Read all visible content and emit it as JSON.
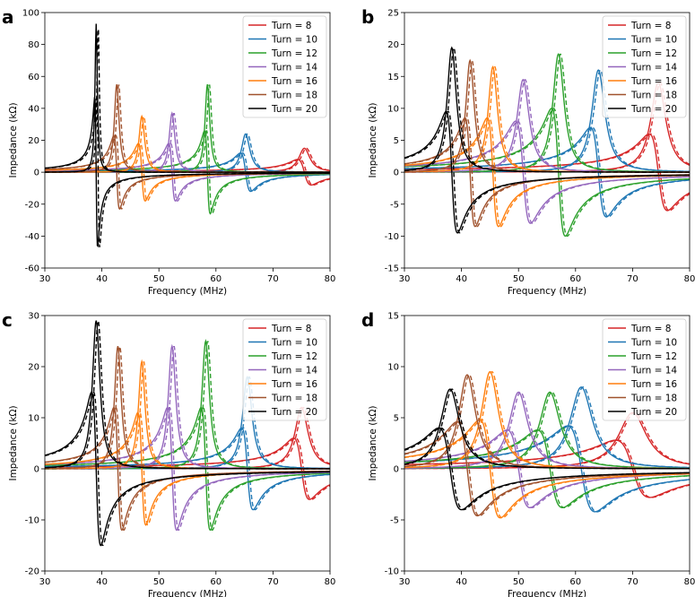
{
  "chart_data": [
    {
      "panel": "a",
      "type": "line",
      "xlabel": "Frequency (MHz)",
      "ylabel": "Impedance (kΩ)",
      "xlim": [
        30,
        80
      ],
      "ylim": [
        -60,
        100
      ],
      "xticks": [
        30,
        40,
        50,
        60,
        70,
        80
      ],
      "yticks": [
        -60,
        -40,
        -20,
        0,
        20,
        40,
        60,
        80,
        100
      ],
      "legend_position": "top-right",
      "series": [
        {
          "name": "Turn = 8",
          "color": "#d62728",
          "f0": 75.5,
          "width": 1.2,
          "peak_real": 15,
          "min_imag": -8
        },
        {
          "name": "Turn = 10",
          "color": "#1f77b4",
          "f0": 65.2,
          "width": 0.9,
          "peak_real": 24,
          "min_imag": -12
        },
        {
          "name": "Turn = 12",
          "color": "#2ca02c",
          "f0": 58.5,
          "width": 0.5,
          "peak_real": 55,
          "min_imag": -26
        },
        {
          "name": "Turn = 14",
          "color": "#9467bd",
          "f0": 52.3,
          "width": 0.6,
          "peak_real": 37,
          "min_imag": -18
        },
        {
          "name": "Turn = 16",
          "color": "#ff7f0e",
          "f0": 47.0,
          "width": 0.6,
          "peak_real": 35,
          "min_imag": -18
        },
        {
          "name": "Turn = 18",
          "color": "#a0522d",
          "f0": 42.6,
          "width": 0.5,
          "peak_real": 55,
          "min_imag": -23
        },
        {
          "name": "Turn = 20",
          "color": "#000000",
          "f0": 39.0,
          "width": 0.25,
          "peak_real": 93,
          "min_imag": -47
        }
      ]
    },
    {
      "panel": "b",
      "type": "line",
      "xlabel": "Frequency (MHz)",
      "ylabel": "Impedance (kΩ)",
      "xlim": [
        30,
        80
      ],
      "ylim": [
        -15,
        25
      ],
      "xticks": [
        30,
        40,
        50,
        60,
        70,
        80
      ],
      "yticks": [
        -15,
        -10,
        -5,
        0,
        5,
        10,
        15,
        20,
        25
      ],
      "legend_position": "top-right",
      "series": [
        {
          "name": "Turn = 8",
          "color": "#d62728",
          "f0": 74.5,
          "width": 1.6,
          "peak_real": 14,
          "min_imag": -6
        },
        {
          "name": "Turn = 10",
          "color": "#1f77b4",
          "f0": 64.0,
          "width": 1.4,
          "peak_real": 16,
          "min_imag": -7
        },
        {
          "name": "Turn = 12",
          "color": "#2ca02c",
          "f0": 57.0,
          "width": 1.2,
          "peak_real": 18.5,
          "min_imag": -10
        },
        {
          "name": "Turn = 14",
          "color": "#9467bd",
          "f0": 50.8,
          "width": 1.3,
          "peak_real": 14.5,
          "min_imag": -8
        },
        {
          "name": "Turn = 16",
          "color": "#ff7f0e",
          "f0": 45.5,
          "width": 1.0,
          "peak_real": 16.5,
          "min_imag": -8.5
        },
        {
          "name": "Turn = 18",
          "color": "#a0522d",
          "f0": 41.5,
          "width": 0.9,
          "peak_real": 17.5,
          "min_imag": -8.5
        },
        {
          "name": "Turn = 20",
          "color": "#000000",
          "f0": 38.3,
          "width": 1.0,
          "peak_real": 19.5,
          "min_imag": -9.5
        }
      ]
    },
    {
      "panel": "c",
      "type": "line",
      "xlabel": "Frequency (MHz)",
      "ylabel": "Impedance (kΩ)",
      "xlim": [
        30,
        80
      ],
      "ylim": [
        -20,
        30
      ],
      "xticks": [
        30,
        40,
        50,
        60,
        70,
        80
      ],
      "yticks": [
        -20,
        -10,
        0,
        10,
        20,
        30
      ],
      "legend_position": "top-right",
      "series": [
        {
          "name": "Turn = 8",
          "color": "#d62728",
          "f0": 75.0,
          "width": 1.4,
          "peak_real": 12,
          "min_imag": -6
        },
        {
          "name": "Turn = 10",
          "color": "#1f77b4",
          "f0": 65.5,
          "width": 1.0,
          "peak_real": 18,
          "min_imag": -8
        },
        {
          "name": "Turn = 12",
          "color": "#2ca02c",
          "f0": 58.2,
          "width": 0.8,
          "peak_real": 25,
          "min_imag": -12
        },
        {
          "name": "Turn = 14",
          "color": "#9467bd",
          "f0": 52.3,
          "width": 0.8,
          "peak_real": 24,
          "min_imag": -12
        },
        {
          "name": "Turn = 16",
          "color": "#ff7f0e",
          "f0": 47.0,
          "width": 0.7,
          "peak_real": 21,
          "min_imag": -11
        },
        {
          "name": "Turn = 18",
          "color": "#a0522d",
          "f0": 42.8,
          "width": 0.7,
          "peak_real": 24,
          "min_imag": -12
        },
        {
          "name": "Turn = 20",
          "color": "#000000",
          "f0": 39.0,
          "width": 0.8,
          "peak_real": 29,
          "min_imag": -15
        }
      ]
    },
    {
      "panel": "d",
      "type": "line",
      "xlabel": "Frequency (MHz)",
      "ylabel": "Impedance (kΩ)",
      "xlim": [
        30,
        80
      ],
      "ylim": [
        -10,
        15
      ],
      "xticks": [
        30,
        40,
        50,
        60,
        70,
        80
      ],
      "yticks": [
        -10,
        -5,
        0,
        5,
        10,
        15
      ],
      "legend_position": "top-right",
      "series": [
        {
          "name": "Turn = 8",
          "color": "#d62728",
          "f0": 70.0,
          "width": 3.0,
          "peak_real": 5.5,
          "min_imag": -2.8
        },
        {
          "name": "Turn = 10",
          "color": "#1f77b4",
          "f0": 61.0,
          "width": 2.4,
          "peak_real": 8.0,
          "min_imag": -4.2
        },
        {
          "name": "Turn = 12",
          "color": "#2ca02c",
          "f0": 55.5,
          "width": 2.2,
          "peak_real": 7.5,
          "min_imag": -3.8
        },
        {
          "name": "Turn = 14",
          "color": "#9467bd",
          "f0": 50.0,
          "width": 2.0,
          "peak_real": 7.5,
          "min_imag": -3.8
        },
        {
          "name": "Turn = 16",
          "color": "#ff7f0e",
          "f0": 45.0,
          "width": 1.8,
          "peak_real": 9.5,
          "min_imag": -4.8
        },
        {
          "name": "Turn = 18",
          "color": "#a0522d",
          "f0": 41.0,
          "width": 1.8,
          "peak_real": 9.2,
          "min_imag": -4.6
        },
        {
          "name": "Turn = 20",
          "color": "#000000",
          "f0": 38.0,
          "width": 2.0,
          "peak_real": 7.8,
          "min_imag": -4.0
        }
      ]
    }
  ]
}
